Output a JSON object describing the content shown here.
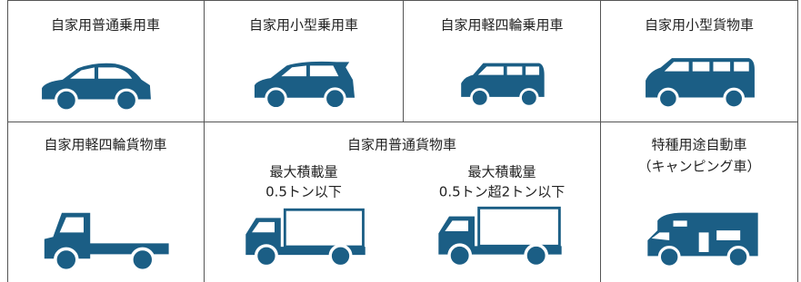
{
  "rows": [
    [
      {
        "label": "自家用普通乗用車"
      },
      {
        "label": "自家用小型乗用車"
      },
      {
        "label": "自家用軽四輪乗用車"
      },
      {
        "label": "自家用小型貨物車"
      }
    ],
    [
      {
        "label": "自家用軽四輪貨物車"
      },
      {
        "label": "自家用普通貨物車",
        "items": [
          {
            "lines": [
              "最大積載量",
              "0.5トン以下"
            ]
          },
          {
            "lines": [
              "最大積載量",
              "0.5トン超2トン以下"
            ]
          }
        ]
      },
      {
        "lines": [
          "特種用途自動車",
          "（キャンピング車）"
        ]
      }
    ]
  ]
}
